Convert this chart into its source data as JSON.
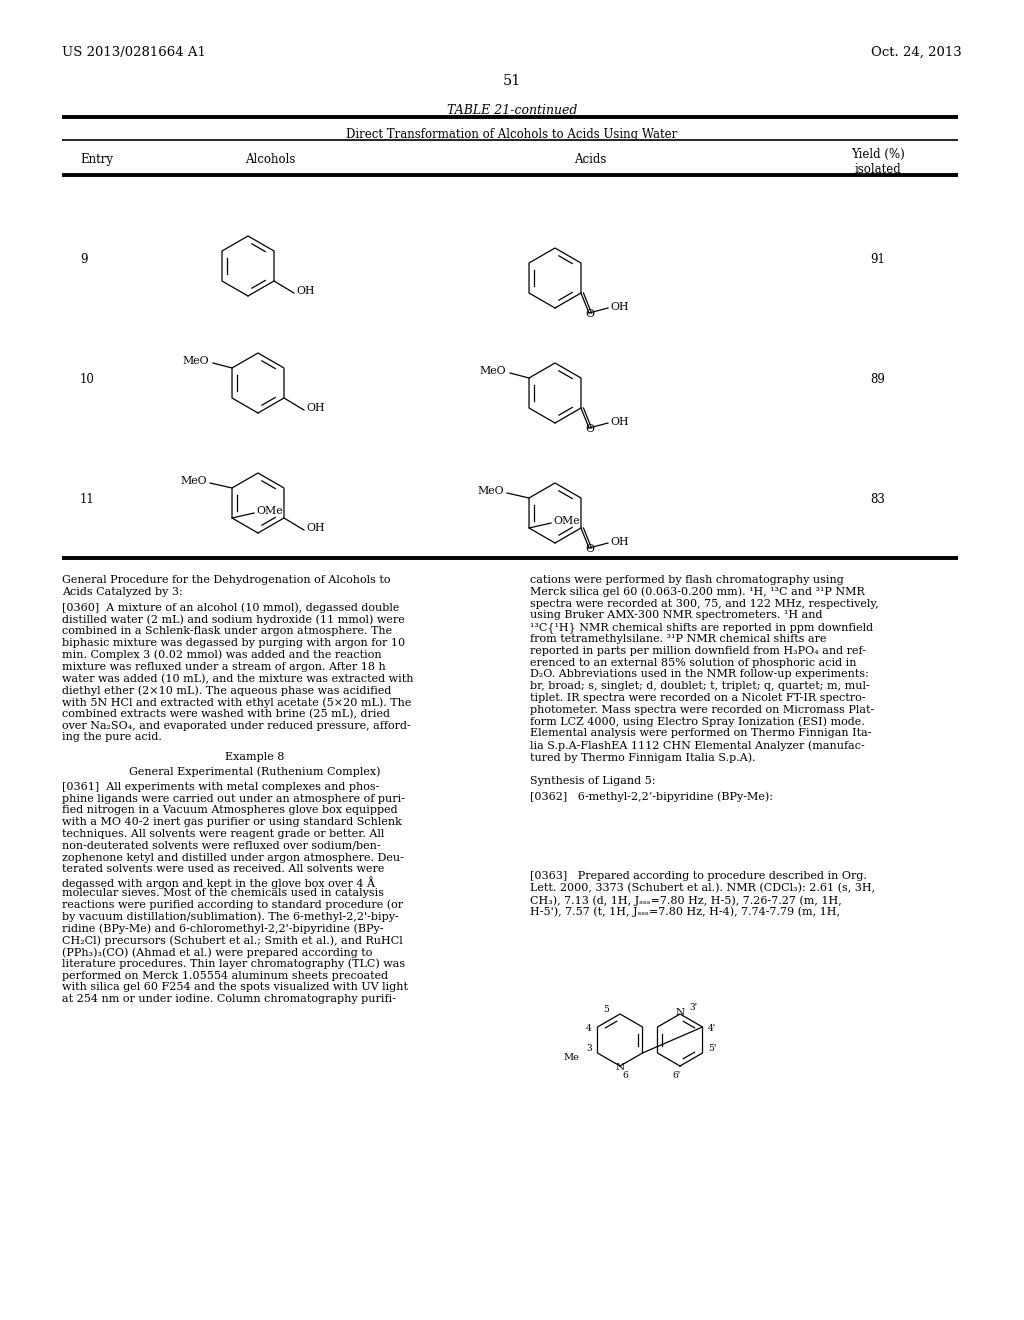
{
  "bg": "#ffffff",
  "header_left": "US 2013/0281664 A1",
  "header_right": "Oct. 24, 2013",
  "page_num": "51",
  "table_title": "TABLE 21-continued",
  "table_sub": "Direct Transformation of Alcohols to Acids Using Water",
  "col_entry": "Entry",
  "col_alc": "Alcohols",
  "col_acid": "Acids",
  "col_yield": "Yield (%)\nisolated",
  "entries": [
    "9",
    "10",
    "11"
  ],
  "yields": [
    "91",
    "89",
    "83"
  ],
  "proc_title_l1": "General Procedure for the Dehydrogenation of Alcohols to",
  "proc_title_l2": "Acids Catalyzed by 3:",
  "p360_lines": [
    "[0360]  A mixture of an alcohol (10 mmol), degassed double",
    "distilled water (2 mL) and sodium hydroxide (11 mmol) were",
    "combined in a Schlenk-flask under argon atmosphere. The",
    "biphasic mixture was degassed by purging with argon for 10",
    "min. Complex 3 (0.02 mmol) was added and the reaction",
    "mixture was refluxed under a stream of argon. After 18 h",
    "water was added (10 mL), and the mixture was extracted with",
    "diethyl ether (2×10 mL). The aqueous phase was acidified",
    "with 5N HCl and extracted with ethyl acetate (5×20 mL). The",
    "combined extracts were washed with brine (25 mL), dried",
    "over Na₂SO₄, and evaporated under reduced pressure, afford-",
    "ing the pure acid."
  ],
  "ex8_title": "Example 8",
  "ex8_sub": "General Experimental (Ruthenium Complex)",
  "p361_lines": [
    "[0361]  All experiments with metal complexes and phos-",
    "phine ligands were carried out under an atmosphere of puri-",
    "fied nitrogen in a Vacuum Atmospheres glove box equipped",
    "with a MO 40-2 inert gas purifier or using standard Schlenk",
    "techniques. All solvents were reagent grade or better. All",
    "non-deuterated solvents were refluxed over sodium/ben-",
    "zophenone ketyl and distilled under argon atmosphere. Deu-",
    "terated solvents were used as received. All solvents were",
    "degassed with argon and kept in the glove box over 4 Å",
    "molecular sieves. Most of the chemicals used in catalysis",
    "reactions were purified according to standard procedure (or",
    "by vacuum distillation/sublimation). The 6-methyl-2,2'-bipy-",
    "ridine (BPy-Me) and 6-chloromethyl-2,2'-bipyridine (BPy-",
    "CH₂Cl) precursors (Schubert et al.; Smith et al.), and RuHCl",
    "(PPh₃)₃(CO) (Ahmad et al.) were prepared according to",
    "literature procedures. Thin layer chromatography (TLC) was",
    "performed on Merck 1.05554 aluminum sheets precoated",
    "with silica gel 60 F254 and the spots visualized with UV light",
    "at 254 nm or under iodine. Column chromatography purifi-"
  ],
  "right_lines": [
    "cations were performed by flash chromatography using",
    "Merck silica gel 60 (0.063-0.200 mm). ¹H, ¹³C and ³¹P NMR",
    "spectra were recorded at 300, 75, and 122 MHz, respectively,",
    "using Bruker AMX-300 NMR spectrometers. ¹H and",
    "¹³C{¹H} NMR chemical shifts are reported in ppm downfield",
    "from tetramethylsilane. ³¹P NMR chemical shifts are",
    "reported in parts per million downfield from H₃PO₄ and ref-",
    "erenced to an external 85% solution of phosphoric acid in",
    "D₂O. Abbreviations used in the NMR follow-up experiments:",
    "br, broad; s, singlet; d, doublet; t, triplet; q, quartet; m, mul-",
    "tiplet. IR spectra were recorded on a Nicolet FT-IR spectro-",
    "photometer. Mass spectra were recorded on Micromass Plat-",
    "form LCZ 4000, using Electro Spray Ionization (ESI) mode.",
    "Elemental analysis were performed on Thermo Finnigan Ita-",
    "lia S.p.A-FlashEA 1112 CHN Elemental Analyzer (manufac-",
    "tured by Thermo Finnigam Italia S.p.A)."
  ],
  "synth_title": "Synthesis of Ligand 5:",
  "p362_text": "[0362]   6-methyl-2,2’-bipyridine (BPy-Me):",
  "p363_lines": [
    "[0363]   Prepared according to procedure described in Org.",
    "Lett. 2000, 3373 (Schubert et al.). NMR (CDCl₃): 2.61 (s, 3H,",
    "CH₃), 7.13 (d, 1H, Jₛₛₛ=7.80 Hz, H-5), 7.26-7.27 (m, 1H,",
    "H-5'), 7.57 (t, 1H, Jₛₛₛ=7.80 Hz, H-4), 7.74-7.79 (m, 1H,"
  ]
}
